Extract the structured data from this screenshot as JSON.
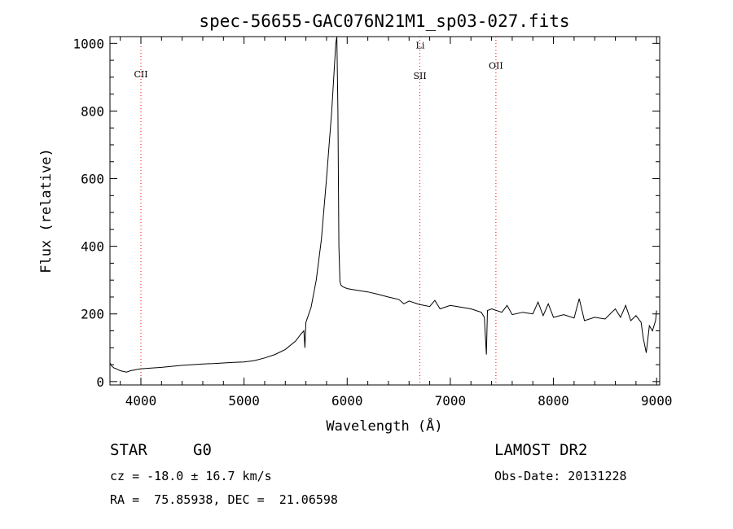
{
  "chart_data": {
    "type": "line",
    "title": "spec-56655-GAC076N21M1_sp03-027.fits",
    "xlabel": "Wavelength (Å)",
    "ylabel": "Flux (relative)",
    "xlim": [
      3700,
      9030
    ],
    "ylim": [
      -10,
      1020
    ],
    "xticks": [
      4000,
      5000,
      6000,
      7000,
      8000,
      9000
    ],
    "yticks": [
      0,
      200,
      400,
      600,
      800,
      1000
    ],
    "grid": false,
    "line_color": "#000000",
    "marker_color": "#ff0000",
    "series": [
      {
        "x": [
          3700,
          3720,
          3740,
          3760,
          3780,
          3800,
          3830,
          3860,
          3900,
          3950,
          4000,
          4100,
          4200,
          4300,
          4400,
          4500,
          4600,
          4700,
          4800,
          4900,
          5000,
          5100,
          5200,
          5300,
          5400,
          5500,
          5550,
          5580,
          5590,
          5600,
          5650,
          5700,
          5750,
          5800,
          5850,
          5870,
          5890,
          5900,
          5910,
          5920,
          5930,
          5940,
          5960,
          6000,
          6100,
          6200,
          6300,
          6400,
          6500,
          6550,
          6600,
          6700,
          6800,
          6850,
          6900,
          7000,
          7100,
          7200,
          7250,
          7300,
          7330,
          7350,
          7360,
          7400,
          7500,
          7550,
          7600,
          7700,
          7800,
          7850,
          7900,
          7950,
          8000,
          8100,
          8200,
          8250,
          8300,
          8400,
          8500,
          8600,
          8650,
          8700,
          8750,
          8800,
          8850,
          8870,
          8900,
          8930,
          8960,
          8990,
          9000
        ],
        "y": [
          55,
          45,
          40,
          38,
          35,
          32,
          30,
          28,
          32,
          35,
          38,
          40,
          42,
          45,
          48,
          50,
          52,
          53,
          55,
          57,
          58,
          62,
          70,
          80,
          95,
          120,
          140,
          150,
          100,
          175,
          220,
          300,
          420,
          600,
          800,
          900,
          1000,
          1020,
          800,
          400,
          295,
          285,
          280,
          275,
          270,
          265,
          258,
          250,
          243,
          230,
          238,
          228,
          222,
          240,
          215,
          225,
          220,
          215,
          210,
          205,
          190,
          80,
          210,
          215,
          205,
          225,
          198,
          205,
          200,
          235,
          195,
          230,
          190,
          198,
          188,
          245,
          180,
          190,
          185,
          215,
          190,
          225,
          180,
          195,
          175,
          130,
          85,
          165,
          150,
          180,
          210
        ]
      }
    ],
    "lines": [
      {
        "label": "CII",
        "x": 4000,
        "label_y": 900
      },
      {
        "label": "SII",
        "x": 6705,
        "label_y": 895
      },
      {
        "label": "Li",
        "x": 6708,
        "label_y": 985
      },
      {
        "label": "OII",
        "x": 7442,
        "label_y": 925
      }
    ]
  },
  "info": {
    "object_class": "STAR",
    "subclass": "G0",
    "survey": "LAMOST DR2",
    "cz": "cz = -18.0 ± 16.7 km/s",
    "obs_date": "Obs-Date: 20131228",
    "coords": "RA =  75.85938, DEC =  21.06598"
  }
}
